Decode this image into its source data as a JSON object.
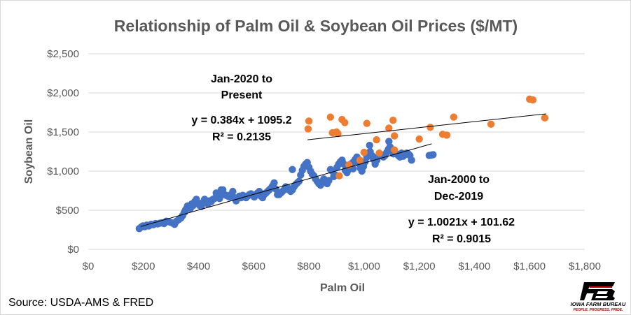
{
  "chart_data": {
    "type": "scatter",
    "title": "Relationship of Palm Oil & Soybean Oil Prices ($/MT)",
    "xlabel": "Palm Oil",
    "ylabel": "Soybean Oil",
    "xlim": [
      0,
      1800
    ],
    "ylim": [
      0,
      2500
    ],
    "x_ticks": [
      0,
      200,
      400,
      600,
      800,
      1000,
      1200,
      1400,
      1600,
      1800
    ],
    "y_ticks": [
      0,
      500,
      1000,
      1500,
      2000,
      2500
    ],
    "x_tick_labels": [
      "$0",
      "$200",
      "$400",
      "$600",
      "$800",
      "$1,000",
      "$1,200",
      "$1,400",
      "$1,600",
      "$1,800"
    ],
    "y_tick_labels": [
      "$0",
      "$500",
      "$1,000",
      "$1,500",
      "$2,000",
      "$2,500"
    ],
    "grid": "horizontal",
    "series": [
      {
        "color": "#4472c4",
        "trendline": {
          "slope": 1.0021,
          "intercept": 101.62,
          "x_range": [
            190,
            1245
          ]
        },
        "points": [
          [
            185,
            265
          ],
          [
            192,
            285
          ],
          [
            198,
            300
          ],
          [
            205,
            290
          ],
          [
            212,
            310
          ],
          [
            220,
            300
          ],
          [
            228,
            320
          ],
          [
            236,
            315
          ],
          [
            244,
            330
          ],
          [
            252,
            325
          ],
          [
            260,
            335
          ],
          [
            268,
            340
          ],
          [
            275,
            330
          ],
          [
            283,
            360
          ],
          [
            290,
            355
          ],
          [
            298,
            345
          ],
          [
            306,
            335
          ],
          [
            313,
            320
          ],
          [
            320,
            360
          ],
          [
            328,
            380
          ],
          [
            336,
            400
          ],
          [
            342,
            430
          ],
          [
            348,
            470
          ],
          [
            352,
            500
          ],
          [
            356,
            520
          ],
          [
            360,
            555
          ],
          [
            365,
            540
          ],
          [
            370,
            520
          ],
          [
            375,
            580
          ],
          [
            380,
            560
          ],
          [
            386,
            610
          ],
          [
            392,
            640
          ],
          [
            398,
            590
          ],
          [
            404,
            560
          ],
          [
            410,
            550
          ],
          [
            416,
            600
          ],
          [
            422,
            640
          ],
          [
            428,
            600
          ],
          [
            434,
            580
          ],
          [
            440,
            620
          ],
          [
            446,
            610
          ],
          [
            452,
            640
          ],
          [
            458,
            650
          ],
          [
            464,
            720
          ],
          [
            470,
            700
          ],
          [
            476,
            650
          ],
          [
            482,
            760
          ],
          [
            488,
            760
          ],
          [
            494,
            700
          ],
          [
            500,
            690
          ],
          [
            506,
            680
          ],
          [
            512,
            670
          ],
          [
            518,
            700
          ],
          [
            524,
            740
          ],
          [
            530,
            660
          ],
          [
            536,
            620
          ],
          [
            542,
            650
          ],
          [
            548,
            680
          ],
          [
            554,
            660
          ],
          [
            560,
            690
          ],
          [
            566,
            680
          ],
          [
            572,
            660
          ],
          [
            578,
            680
          ],
          [
            584,
            700
          ],
          [
            590,
            710
          ],
          [
            596,
            690
          ],
          [
            602,
            670
          ],
          [
            608,
            700
          ],
          [
            614,
            720
          ],
          [
            620,
            740
          ],
          [
            626,
            680
          ],
          [
            632,
            660
          ],
          [
            638,
            700
          ],
          [
            644,
            720
          ],
          [
            650,
            740
          ],
          [
            656,
            760
          ],
          [
            662,
            780
          ],
          [
            668,
            810
          ],
          [
            674,
            850
          ],
          [
            680,
            770
          ],
          [
            686,
            700
          ],
          [
            692,
            700
          ],
          [
            698,
            720
          ],
          [
            704,
            740
          ],
          [
            710,
            760
          ],
          [
            716,
            800
          ],
          [
            722,
            790
          ],
          [
            728,
            760
          ],
          [
            734,
            740
          ],
          [
            740,
            760
          ],
          [
            746,
            800
          ],
          [
            752,
            830
          ],
          [
            758,
            850
          ],
          [
            764,
            870
          ],
          [
            770,
            950
          ],
          [
            776,
            1010
          ],
          [
            782,
            1060
          ],
          [
            788,
            1090
          ],
          [
            794,
            1110
          ],
          [
            800,
            1050
          ],
          [
            806,
            1000
          ],
          [
            812,
            960
          ],
          [
            818,
            940
          ],
          [
            824,
            900
          ],
          [
            830,
            870
          ],
          [
            836,
            840
          ],
          [
            842,
            820
          ],
          [
            848,
            860
          ],
          [
            854,
            900
          ],
          [
            860,
            870
          ],
          [
            866,
            840
          ],
          [
            872,
            880
          ],
          [
            878,
            1020
          ],
          [
            884,
            1000
          ],
          [
            890,
            930
          ],
          [
            896,
            950
          ],
          [
            902,
            1050
          ],
          [
            908,
            1090
          ],
          [
            914,
            1120
          ],
          [
            920,
            1140
          ],
          [
            926,
            1090
          ],
          [
            932,
            1010
          ],
          [
            938,
            980
          ],
          [
            944,
            1020
          ],
          [
            950,
            1060
          ],
          [
            956,
            1100
          ],
          [
            962,
            1120
          ],
          [
            968,
            1150
          ],
          [
            974,
            1180
          ],
          [
            980,
            1100
          ],
          [
            986,
            1040
          ],
          [
            992,
            1000
          ],
          [
            998,
            1060
          ],
          [
            1004,
            1120
          ],
          [
            1010,
            1180
          ],
          [
            1016,
            1230
          ],
          [
            1022,
            1250
          ],
          [
            1028,
            1200
          ],
          [
            1034,
            1150
          ],
          [
            1040,
            1090
          ],
          [
            1046,
            1140
          ],
          [
            1052,
            1190
          ],
          [
            1058,
            1220
          ],
          [
            1064,
            1200
          ],
          [
            1070,
            1180
          ],
          [
            1076,
            1200
          ],
          [
            1082,
            1240
          ],
          [
            1088,
            1280
          ],
          [
            1094,
            1310
          ],
          [
            1100,
            1260
          ],
          [
            1106,
            1220
          ],
          [
            1112,
            1240
          ],
          [
            1118,
            1220
          ],
          [
            1124,
            1200
          ],
          [
            1130,
            1180
          ],
          [
            1136,
            1230
          ],
          [
            1142,
            1190
          ],
          [
            1148,
            1210
          ],
          [
            1154,
            1230
          ],
          [
            1160,
            1220
          ],
          [
            1166,
            1200
          ],
          [
            1172,
            1140
          ],
          [
            1236,
            1200
          ],
          [
            1244,
            1205
          ],
          [
            1250,
            1210
          ],
          [
            1090,
            1380
          ],
          [
            1020,
            1330
          ],
          [
            1000,
            1240
          ],
          [
            960,
            1030
          ],
          [
            740,
            1020
          ]
        ]
      },
      {
        "color": "#ed7d31",
        "trendline": {
          "slope": 0.384,
          "intercept": 1095.2,
          "x_range": [
            795,
            1660
          ]
        },
        "points": [
          [
            797,
            1540
          ],
          [
            800,
            1640
          ],
          [
            878,
            1690
          ],
          [
            885,
            1490
          ],
          [
            900,
            1500
          ],
          [
            905,
            1480
          ],
          [
            920,
            1660
          ],
          [
            930,
            1620
          ],
          [
            1000,
            1240
          ],
          [
            1010,
            1610
          ],
          [
            1045,
            1400
          ],
          [
            1090,
            1550
          ],
          [
            1105,
            1650
          ],
          [
            1110,
            1450
          ],
          [
            1200,
            1410
          ],
          [
            1240,
            1560
          ],
          [
            1285,
            1470
          ],
          [
            1300,
            1460
          ],
          [
            1325,
            1690
          ],
          [
            1460,
            1600
          ],
          [
            1600,
            1920
          ],
          [
            1612,
            1910
          ],
          [
            1655,
            1680
          ],
          [
            945,
            1080
          ],
          [
            985,
            1140
          ],
          [
            1055,
            1230
          ],
          [
            1110,
            1270
          ],
          [
            910,
            940
          ]
        ]
      }
    ],
    "annotations": {
      "recent_period": [
        "Jan-2020 to",
        "Present"
      ],
      "recent_equation": "y = 0.384x + 1095.2",
      "recent_r2": "R² = 0.2135",
      "historic_period": [
        "Jan-2000 to",
        "Dec-2019"
      ],
      "historic_equation": "y = 1.0021x + 101.62",
      "historic_r2": "R² = 0.9015"
    }
  },
  "source": "Source: USDA-AMS & FRED",
  "logo": {
    "name": "IOWA FARM BUREAU",
    "tagline": "PEOPLE. PROGRESS. PRIDE."
  }
}
